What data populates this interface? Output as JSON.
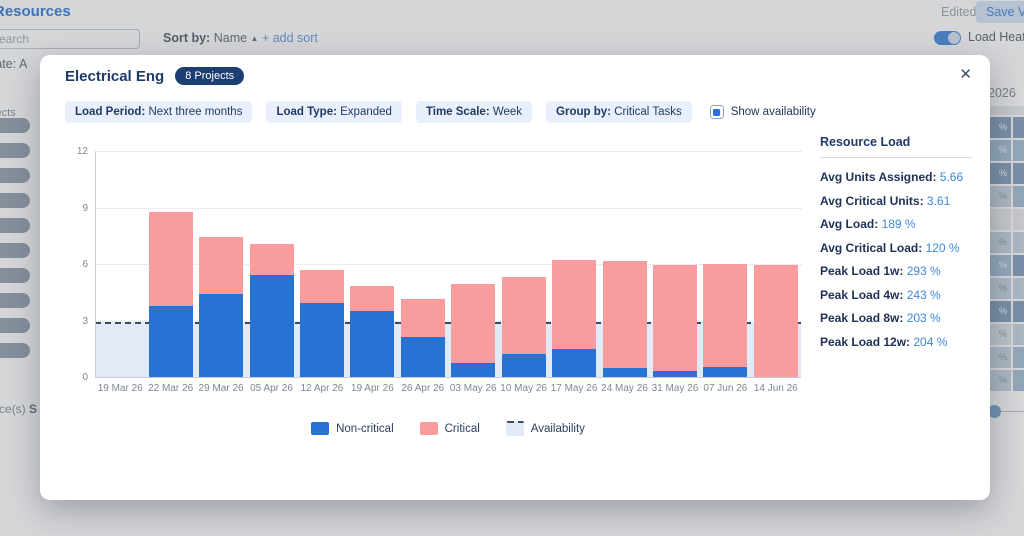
{
  "background": {
    "page_title": "Resources",
    "search_placeholder": "Search",
    "sort": {
      "label": "Sort by:",
      "value": "Name",
      "direction_icon": "▲",
      "add_sort": "+ add sort"
    },
    "edited_label": "Edited",
    "save_view_label": "Save View",
    "load_heat_map_label": "Load Heat Map",
    "template_label": "Template: A",
    "projects_label": "Projects",
    "resource_count_label": "resource(s)",
    "selected_word": "S",
    "year_header": "2026",
    "heatmap": {
      "palette": {
        "dark": "#8ba3c0",
        "medium": "#a9c2d8",
        "light": "#cbd7e3",
        "xlight": "#dee4ea",
        "none": "#e9ebed"
      },
      "rows": [
        {
          "main": "dark",
          "side": "dark",
          "label": "%"
        },
        {
          "main": "medium",
          "side": "medium",
          "label": "%"
        },
        {
          "main": "dark",
          "side": "dark",
          "label": "%"
        },
        {
          "main": "light",
          "side": "medium",
          "label": "%"
        },
        {
          "main": "none",
          "side": "none",
          "label": ""
        },
        {
          "main": "light",
          "side": "light",
          "label": "%"
        },
        {
          "main": "medium",
          "side": "dark",
          "label": "%"
        },
        {
          "main": "light",
          "side": "light",
          "label": "%"
        },
        {
          "main": "dark",
          "side": "dark",
          "label": "%"
        },
        {
          "main": "xlight",
          "side": "light",
          "label": "%"
        },
        {
          "main": "light",
          "side": "medium",
          "label": "%"
        },
        {
          "main": "light",
          "side": "medium",
          "label": "%"
        }
      ]
    }
  },
  "modal": {
    "title": "Electrical Eng",
    "badge": "8 Projects",
    "close_icon": "✕",
    "filters": [
      {
        "label": "Load Period:",
        "value": "Next three months"
      },
      {
        "label": "Load Type:",
        "value": "Expanded"
      },
      {
        "label": "Time Scale:",
        "value": "Week"
      },
      {
        "label": "Group by:",
        "value": "Critical Tasks"
      }
    ],
    "show_availability_label": "Show availability",
    "stats": {
      "title": "Resource Load",
      "items": [
        {
          "label": "Avg Units Assigned:",
          "value": "5.66"
        },
        {
          "label": "Avg Critical Units:",
          "value": "3.61"
        },
        {
          "label": "Avg Load:",
          "value": "189 %"
        },
        {
          "label": "Avg Critical Load:",
          "value": "120 %"
        },
        {
          "label": "Peak Load 1w:",
          "value": "293 %"
        },
        {
          "label": "Peak Load 4w:",
          "value": "243 %"
        },
        {
          "label": "Peak Load 8w:",
          "value": "203 %"
        },
        {
          "label": "Peak Load 12w:",
          "value": "204 %"
        }
      ]
    },
    "legend": [
      {
        "label": "Non-critical",
        "color": "#2673d4",
        "icon": "noncritical-swatch"
      },
      {
        "label": "Critical",
        "color": "#f89c9d",
        "icon": "critical-swatch"
      },
      {
        "label": "Availability",
        "color": "#e2eaf7",
        "dashed_top": true,
        "icon": "availability-swatch"
      }
    ]
  },
  "chart_data": {
    "type": "bar",
    "stacked": true,
    "title": "",
    "xlabel": "",
    "ylabel": "",
    "categories": [
      "19 Mar 26",
      "22 Mar 26",
      "29 Mar 26",
      "05 Apr 26",
      "12 Apr 26",
      "19 Apr 26",
      "26 Apr 26",
      "03 May 26",
      "10 May 26",
      "17 May 26",
      "24 May 26",
      "31 May 26",
      "07 Jun 26",
      "14 Jun 26"
    ],
    "series": [
      {
        "name": "Non-critical",
        "color": "#2673d4",
        "values": [
          0,
          3.8,
          4.45,
          5.45,
          4.0,
          3.55,
          2.2,
          0.8,
          1.3,
          1.55,
          0.55,
          0.35,
          0.6,
          0
        ]
      },
      {
        "name": "Critical",
        "color": "#f89c9d",
        "values": [
          0,
          5.0,
          3.05,
          1.65,
          1.75,
          1.35,
          2.0,
          4.2,
          4.05,
          4.7,
          5.65,
          5.65,
          5.45,
          6.0
        ]
      }
    ],
    "availability": {
      "value": 3,
      "color": "#e2eaf7",
      "line": "dashed",
      "line_color": "#3d4a63"
    },
    "yticks": [
      0,
      3,
      6,
      9,
      12
    ],
    "ylim": [
      0,
      12
    ],
    "grid": "horizontal-dotted",
    "legend_position": "bottom"
  }
}
